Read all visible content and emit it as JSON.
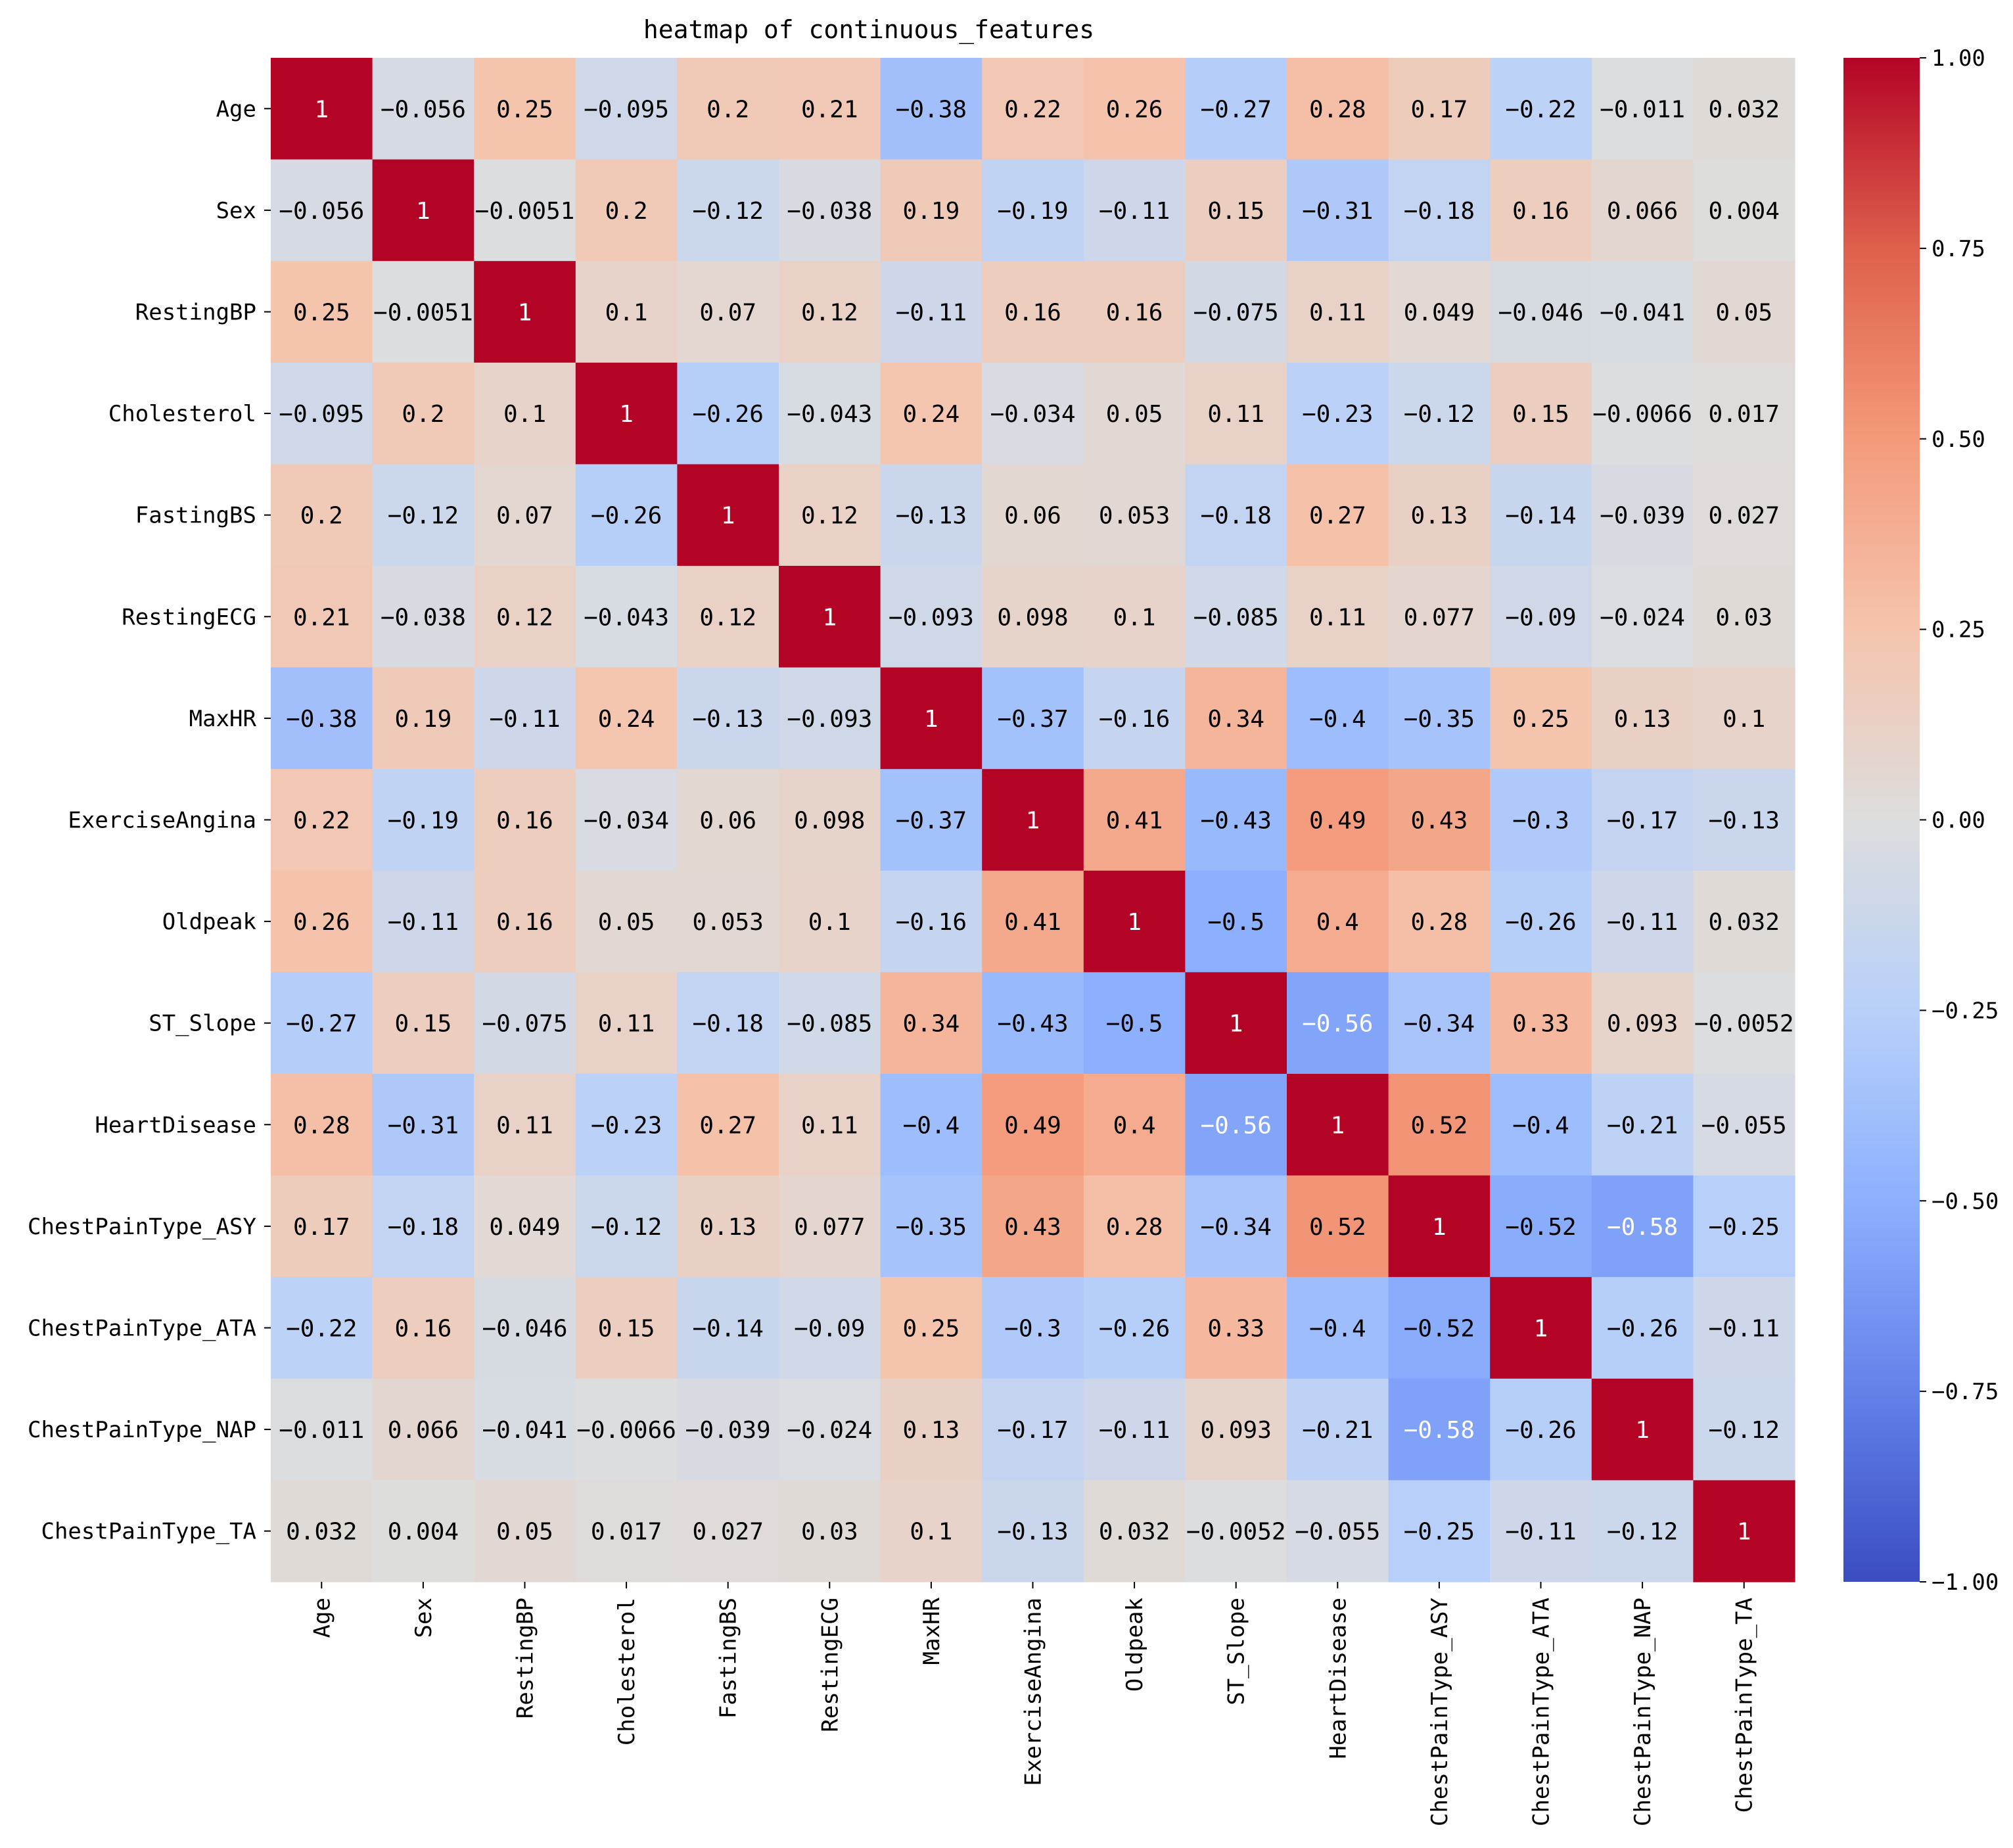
{
  "chart_data": {
    "type": "heatmap",
    "title": "heatmap of continuous_features",
    "xlabel": "",
    "ylabel": "",
    "labels": [
      "Age",
      "Sex",
      "RestingBP",
      "Cholesterol",
      "FastingBS",
      "RestingECG",
      "MaxHR",
      "ExerciseAngina",
      "Oldpeak",
      "ST_Slope",
      "HeartDisease",
      "ChestPainType_ASY",
      "ChestPainType_ATA",
      "ChestPainType_NAP",
      "ChestPainType_TA"
    ],
    "values": [
      [
        1,
        -0.056,
        0.25,
        -0.095,
        0.2,
        0.21,
        -0.38,
        0.22,
        0.26,
        -0.27,
        0.28,
        0.17,
        -0.22,
        -0.011,
        0.032
      ],
      [
        -0.056,
        1,
        -0.0051,
        0.2,
        -0.12,
        -0.038,
        0.19,
        -0.19,
        -0.11,
        0.15,
        -0.31,
        -0.18,
        0.16,
        0.066,
        0.004
      ],
      [
        0.25,
        -0.0051,
        1,
        0.1,
        0.07,
        0.12,
        -0.11,
        0.16,
        0.16,
        -0.075,
        0.11,
        0.049,
        -0.046,
        -0.041,
        0.05
      ],
      [
        -0.095,
        0.2,
        0.1,
        1,
        -0.26,
        -0.043,
        0.24,
        -0.034,
        0.05,
        0.11,
        -0.23,
        -0.12,
        0.15,
        -0.0066,
        0.017
      ],
      [
        0.2,
        -0.12,
        0.07,
        -0.26,
        1,
        0.12,
        -0.13,
        0.06,
        0.053,
        -0.18,
        0.27,
        0.13,
        -0.14,
        -0.039,
        0.027
      ],
      [
        0.21,
        -0.038,
        0.12,
        -0.043,
        0.12,
        1,
        -0.093,
        0.098,
        0.1,
        -0.085,
        0.11,
        0.077,
        -0.09,
        -0.024,
        0.03
      ],
      [
        -0.38,
        0.19,
        -0.11,
        0.24,
        -0.13,
        -0.093,
        1,
        -0.37,
        -0.16,
        0.34,
        -0.4,
        -0.35,
        0.25,
        0.13,
        0.1
      ],
      [
        0.22,
        -0.19,
        0.16,
        -0.034,
        0.06,
        0.098,
        -0.37,
        1,
        0.41,
        -0.43,
        0.49,
        0.43,
        -0.3,
        -0.17,
        -0.13
      ],
      [
        0.26,
        -0.11,
        0.16,
        0.05,
        0.053,
        0.1,
        -0.16,
        0.41,
        1,
        -0.5,
        0.4,
        0.28,
        -0.26,
        -0.11,
        0.032
      ],
      [
        -0.27,
        0.15,
        -0.075,
        0.11,
        -0.18,
        -0.085,
        0.34,
        -0.43,
        -0.5,
        1,
        -0.56,
        -0.34,
        0.33,
        0.093,
        -0.0052
      ],
      [
        0.28,
        -0.31,
        0.11,
        -0.23,
        0.27,
        0.11,
        -0.4,
        0.49,
        0.4,
        -0.56,
        1,
        0.52,
        -0.4,
        -0.21,
        -0.055
      ],
      [
        0.17,
        -0.18,
        0.049,
        -0.12,
        0.13,
        0.077,
        -0.35,
        0.43,
        0.28,
        -0.34,
        0.52,
        1,
        -0.52,
        -0.58,
        -0.25
      ],
      [
        -0.22,
        0.16,
        -0.046,
        0.15,
        -0.14,
        -0.09,
        0.25,
        -0.3,
        -0.26,
        0.33,
        -0.4,
        -0.52,
        1,
        -0.26,
        -0.11
      ],
      [
        -0.011,
        0.066,
        -0.041,
        -0.0066,
        -0.039,
        -0.024,
        0.13,
        -0.17,
        -0.11,
        0.093,
        -0.21,
        -0.58,
        -0.26,
        1,
        -0.12
      ],
      [
        0.032,
        0.004,
        0.05,
        0.017,
        0.027,
        0.03,
        0.1,
        -0.13,
        0.032,
        -0.0052,
        -0.055,
        -0.25,
        -0.11,
        -0.12,
        1
      ]
    ],
    "vmin": -1,
    "vmax": 1,
    "colormap": "coolwarm",
    "colorbar": {
      "ticks": [
        1.0,
        0.75,
        0.5,
        0.25,
        0.0,
        -0.25,
        -0.5,
        -0.75,
        -1.0
      ],
      "tick_labels": [
        "1.00",
        "0.75",
        "0.50",
        "0.25",
        "0.00",
        "−0.25",
        "−0.50",
        "−0.75",
        "−1.00"
      ]
    },
    "grid": false,
    "legend": "colorbar-right"
  },
  "colors": {
    "background": "#ffffff",
    "text": "#000000",
    "low": "#3b4cc0",
    "mid": "#dddddd",
    "high": "#b40426"
  }
}
